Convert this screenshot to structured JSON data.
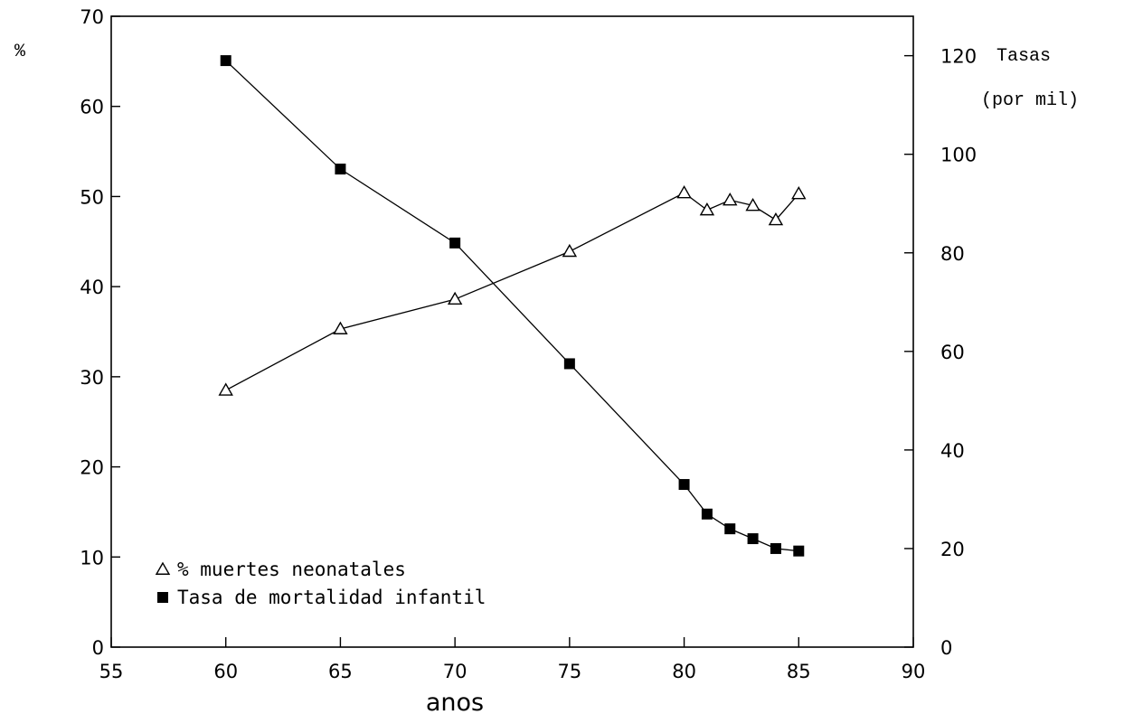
{
  "chart_data": {
    "type": "line",
    "xlabel": "anos",
    "ylabel_left": "%",
    "ylabel_right": [
      "Tasas",
      "(por mil)"
    ],
    "xlim": [
      55,
      90
    ],
    "ylim_left": [
      0,
      70
    ],
    "ylim_right": [
      0,
      128
    ],
    "x_ticks": [
      55,
      60,
      65,
      70,
      75,
      80,
      85,
      90
    ],
    "y_left_ticks": [
      0,
      10,
      20,
      30,
      40,
      50,
      60,
      70
    ],
    "y_right_ticks": [
      0,
      20,
      40,
      60,
      80,
      100,
      120
    ],
    "grid": false,
    "legend_position": "bottom-left",
    "series": [
      {
        "name": "% muertes neonatales",
        "axis": "left",
        "marker": "open-triangle",
        "x": [
          60,
          65,
          70,
          75,
          80,
          81,
          82,
          83,
          84,
          85
        ],
        "y": [
          28.5,
          35.3,
          38.6,
          43.9,
          50.4,
          48.5,
          49.6,
          49.0,
          47.4,
          50.3
        ]
      },
      {
        "name": "Tasa de mortalidad infantil",
        "axis": "right",
        "marker": "filled-square",
        "x": [
          60,
          65,
          70,
          75,
          80,
          81,
          82,
          83,
          84,
          85
        ],
        "y": [
          119.0,
          97.0,
          82.0,
          57.5,
          33.0,
          27.0,
          24.0,
          22.0,
          20.0,
          19.5
        ]
      }
    ]
  }
}
